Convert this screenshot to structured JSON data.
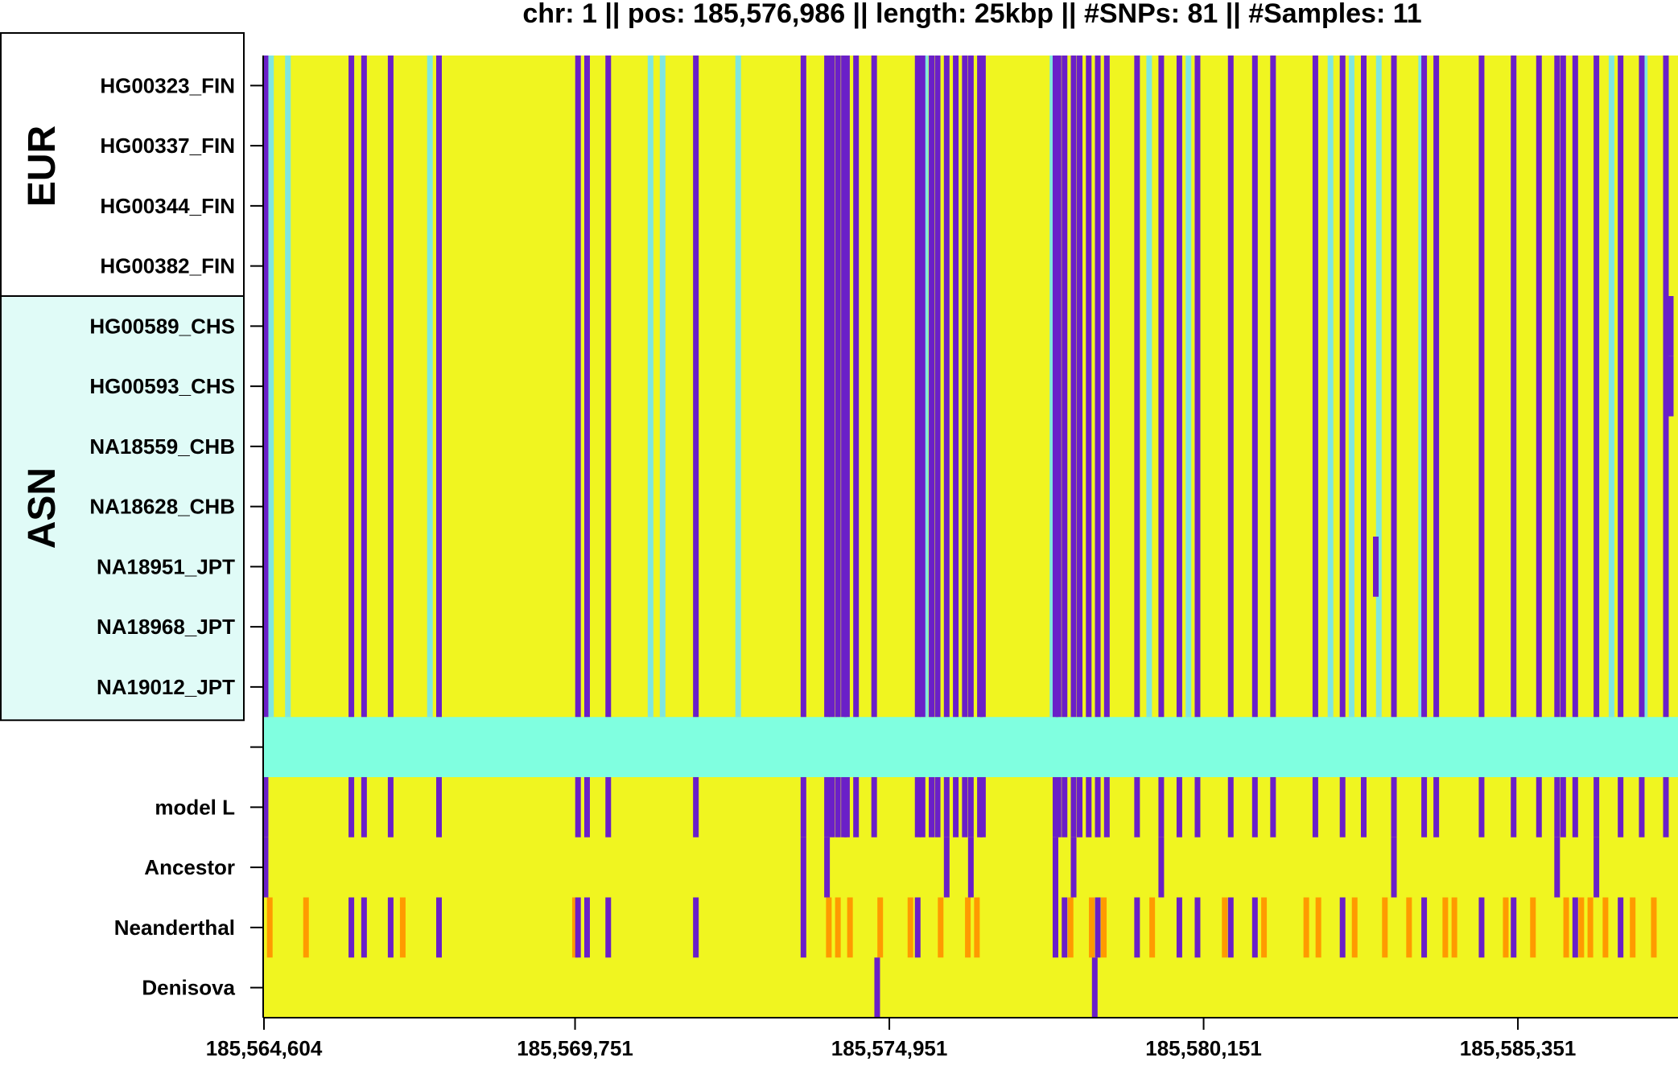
{
  "chart_data": {
    "type": "heatmap",
    "title": "chr: 1  ||  pos: 185,576,986  ||  length: 25kbp  ||  #SNPs: 81  ||  #Samples: 11",
    "xlim": [
      185564604,
      185588000
    ],
    "x_ticks": [
      185564604,
      185569751,
      185574951,
      185580151,
      185585351
    ],
    "x_tick_labels": [
      "185,564,604",
      "185,569,751",
      "185,574,951",
      "185,580,151",
      "185,585,351"
    ],
    "groups": [
      {
        "label": "EUR",
        "color": "#ffffff",
        "rows": [
          "HG00323_FIN",
          "HG00337_FIN",
          "HG00344_FIN",
          "HG00382_FIN"
        ]
      },
      {
        "label": "ASN",
        "color": "#e0fbf7",
        "rows": [
          "HG00589_CHS",
          "HG00593_CHS",
          "NA18559_CHB",
          "NA18628_CHB",
          "NA18951_JPT",
          "NA18968_JPT",
          "NA19012_JPT"
        ]
      }
    ],
    "rows": [
      "HG00323_FIN",
      "HG00337_FIN",
      "HG00344_FIN",
      "HG00382_FIN",
      "HG00589_CHS",
      "HG00593_CHS",
      "NA18559_CHB",
      "NA18628_CHB",
      "NA18951_JPT",
      "NA18968_JPT",
      "NA19012_JPT",
      "",
      "model L",
      "Ancestor",
      "Neanderthal",
      "Denisova"
    ],
    "colors": {
      "ref": "#f0f520",
      "alt": "#6a1fc8",
      "lowq": "#7fe6e0",
      "separator": "#80ffe0",
      "neanderthal_het": "#ff9a00"
    },
    "sample_alt_sites": [
      185564630,
      185566050,
      185566260,
      185566700,
      185567500,
      185569800,
      185569950,
      185570300,
      185571750,
      185573530,
      185573920,
      185574000,
      185574100,
      185574200,
      185574250,
      185574400,
      185574700,
      185575420,
      185575500,
      185575650,
      185575750,
      185575900,
      185576050,
      185576200,
      185576300,
      185576450,
      185576500,
      185577700,
      185577750,
      185577850,
      185578000,
      185578100,
      185578250,
      185578400,
      185578550,
      185579050,
      185579450,
      185579750,
      185580050,
      185580600,
      185581000,
      185581300,
      185582000,
      185582450,
      185582800,
      185583300,
      185583800,
      185584000,
      185584750,
      185585280,
      185585700,
      185586000,
      185586100,
      185586300,
      185586650,
      185587050,
      185587400,
      185587800
    ],
    "sample_lowq_sites": [
      185564720,
      185565000,
      185567350,
      185571000,
      185571200,
      185572450,
      185575550,
      185577650,
      185579250,
      185579900,
      185582250,
      185582600,
      185583050,
      185583750,
      185586900,
      185587450
    ],
    "model_l_alt_sites": [
      185564630,
      185566050,
      185566260,
      185566700,
      185567500,
      185569800,
      185569950,
      185570300,
      185571750,
      185573530,
      185573920,
      185574000,
      185574100,
      185574200,
      185574250,
      185574400,
      185574700,
      185575420,
      185575500,
      185575650,
      185575750,
      185575900,
      185576050,
      185576200,
      185576300,
      185576450,
      185576500,
      185577700,
      185577750,
      185577850,
      185578000,
      185578100,
      185578250,
      185578400,
      185578550,
      185579050,
      185579450,
      185579750,
      185580050,
      185580600,
      185581000,
      185581300,
      185582000,
      185582450,
      185582800,
      185583300,
      185583800,
      185584000,
      185584750,
      185585280,
      185585700,
      185586000,
      185586100,
      185586300,
      185586650,
      185587050,
      185587400,
      185587800
    ],
    "ancestor_alt_sites": [
      185564630,
      185573530,
      185573920,
      185575900,
      185576300,
      185577700,
      185578000,
      185579450,
      185583300,
      185586000,
      185586650
    ],
    "neanderthal_alt_sites": [
      185566050,
      185566260,
      185566700,
      185567500,
      185569800,
      185569950,
      185570300,
      185571750,
      185573530,
      185575420,
      185577700,
      185577850,
      185578400,
      185579050,
      185579750,
      185580050,
      185580600,
      185581000,
      185582450,
      185583800,
      185584750,
      185585280,
      185586300,
      185587050
    ],
    "neanderthal_het_sites": [
      185564700,
      185565300,
      185566900,
      185569750,
      185573950,
      185574100,
      185574300,
      185574800,
      185575300,
      185575800,
      185576250,
      185576400,
      185577950,
      185578300,
      185578500,
      185579300,
      185580500,
      185581150,
      185581850,
      185582050,
      185582650,
      185583150,
      185583550,
      185584150,
      185584300,
      185585150,
      185585600,
      185586150,
      185586400,
      185586550,
      185586800,
      185587250,
      185587600
    ],
    "denisova_alt_sites": [
      185574750,
      185578350
    ],
    "partial_rows": [
      {
        "site": 185583000,
        "rows": [
          "NA18951_JPT"
        ]
      },
      {
        "site": 185587880,
        "rows": [
          "HG00589_CHS",
          "HG00593_CHS"
        ]
      }
    ]
  }
}
